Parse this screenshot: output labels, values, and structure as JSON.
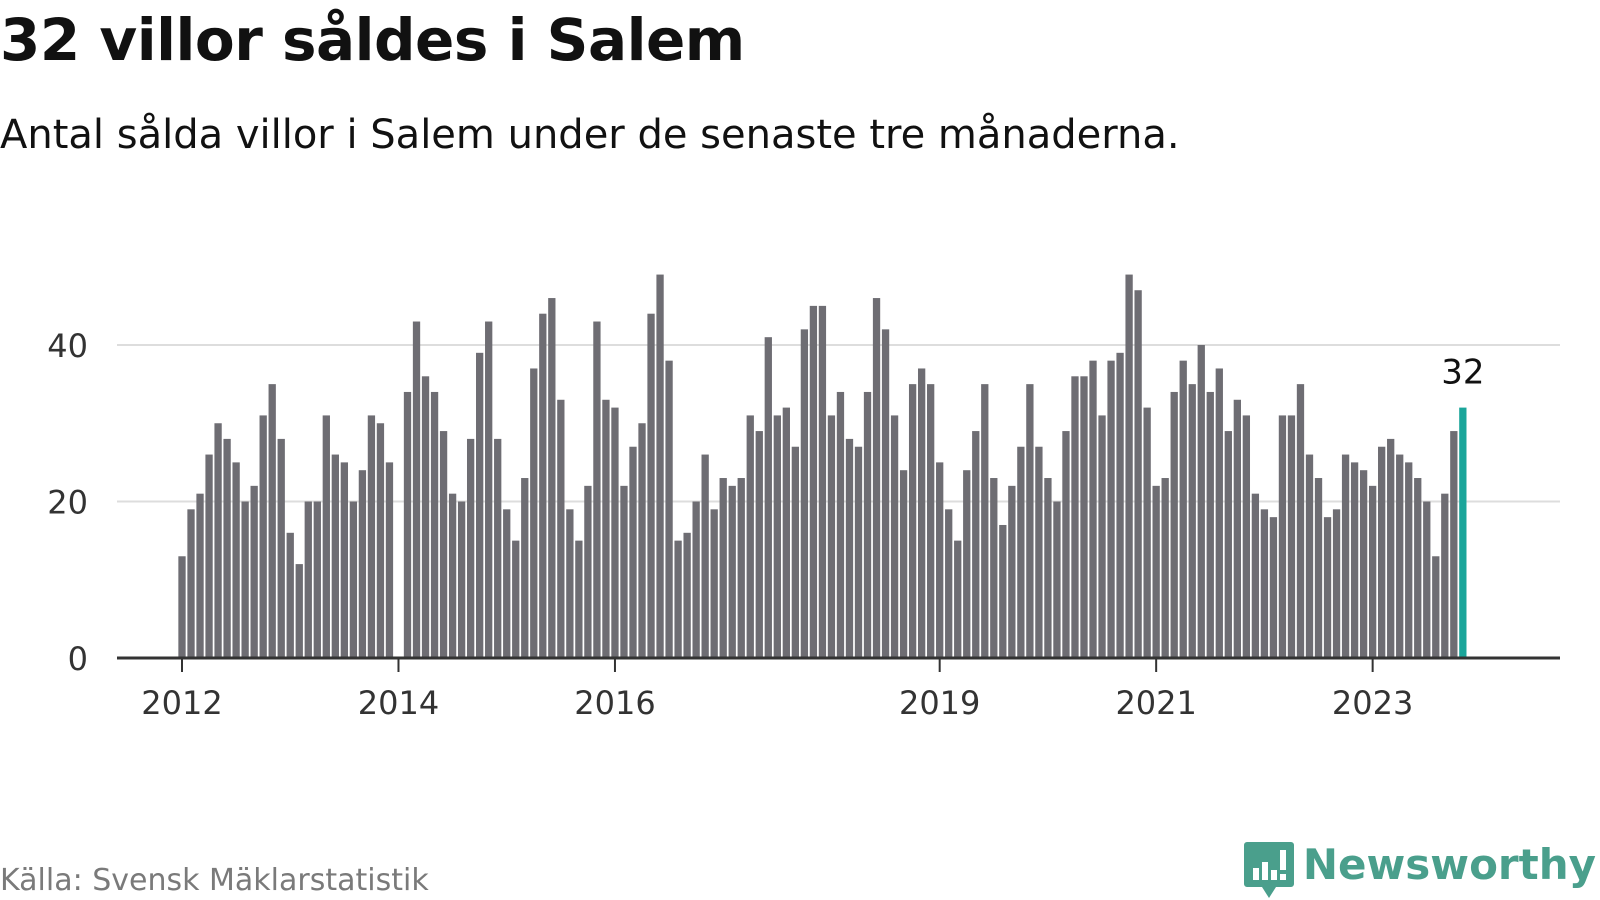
{
  "title": "32 villor såldes i Salem",
  "subtitle": "Antal sålda villor i Salem under de senaste tre månaderna.",
  "source": "Källa: Svensk Mäklarstatistik",
  "logo": {
    "text": "Newsworthy",
    "icon": "newsworthy-logo-icon"
  },
  "colors": {
    "bar": "#6e6d73",
    "highlight": "#1aa59a",
    "grid": "#dddddd",
    "axis": "#333333",
    "logo": "#4a9f8c"
  },
  "chart_data": {
    "type": "bar",
    "title": "32 villor såldes i Salem",
    "subtitle": "Antal sålda villor i Salem under de senaste tre månaderna.",
    "xlabel": "",
    "ylabel": "",
    "ylim": [
      0,
      49
    ],
    "yticks": [
      0,
      20,
      40
    ],
    "grid": true,
    "start_year": 2012,
    "xticks": [
      "2012",
      "2014",
      "2016",
      "2019",
      "2021",
      "2023"
    ],
    "xtick_year_offsets": [
      0,
      2,
      4,
      7,
      9,
      11
    ],
    "values": [
      13,
      19,
      21,
      26,
      30,
      28,
      25,
      20,
      22,
      31,
      35,
      28,
      16,
      12,
      20,
      20,
      31,
      26,
      25,
      20,
      24,
      31,
      30,
      25,
      0,
      34,
      43,
      36,
      34,
      29,
      21,
      20,
      28,
      39,
      43,
      28,
      19,
      15,
      23,
      37,
      44,
      46,
      33,
      19,
      15,
      22,
      43,
      33,
      32,
      22,
      27,
      30,
      44,
      49,
      38,
      15,
      16,
      20,
      26,
      19,
      23,
      22,
      23,
      31,
      29,
      41,
      31,
      32,
      27,
      42,
      45,
      45,
      31,
      34,
      28,
      27,
      34,
      46,
      42,
      31,
      24,
      35,
      37,
      35,
      25,
      19,
      15,
      24,
      29,
      35,
      23,
      17,
      22,
      27,
      35,
      27,
      23,
      20,
      29,
      36,
      36,
      38,
      31,
      38,
      39,
      49,
      47,
      32,
      22,
      23,
      34,
      38,
      35,
      40,
      34,
      37,
      29,
      33,
      31,
      21,
      19,
      18,
      31,
      31,
      35,
      26,
      23,
      18,
      19,
      26,
      25,
      24,
      22,
      27,
      28,
      26,
      25,
      23,
      20,
      13,
      21,
      29,
      32
    ],
    "highlight_last": true,
    "highlight_label": "32"
  }
}
